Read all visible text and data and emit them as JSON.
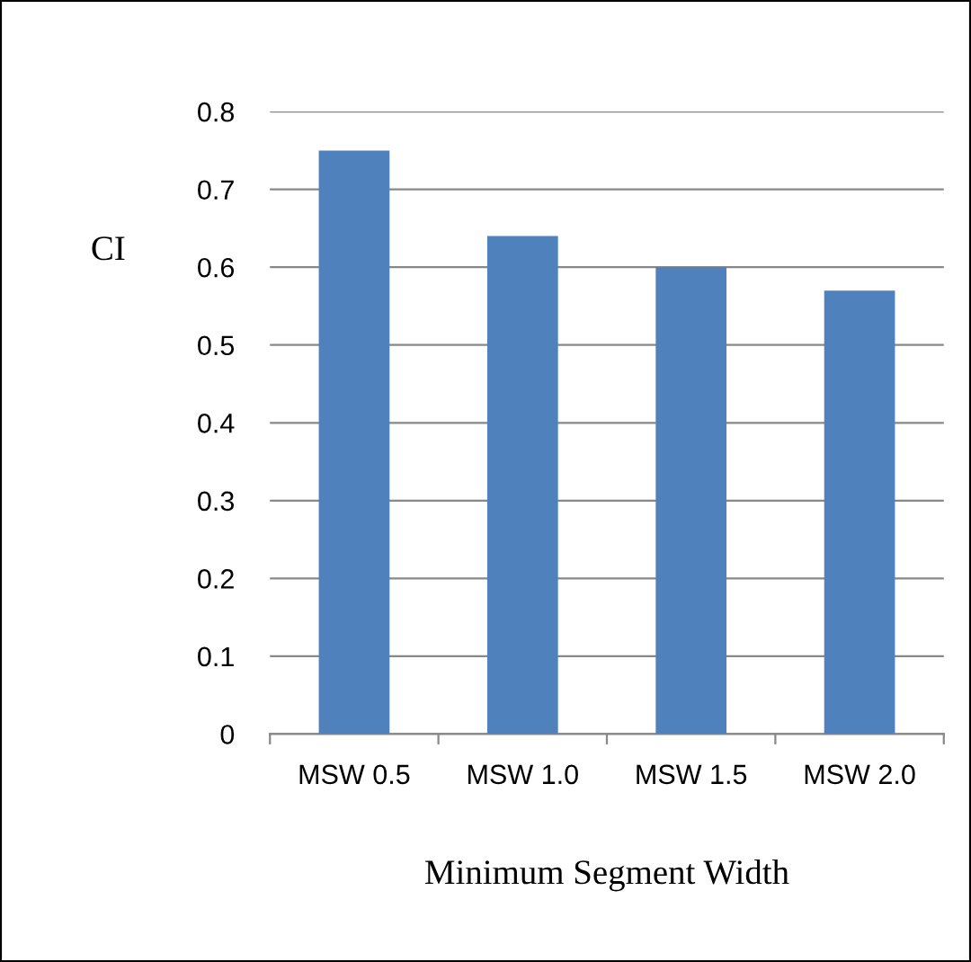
{
  "chart_data": {
    "type": "bar",
    "xlabel": "Minimum Segment Width",
    "ylabel": "CI",
    "categories": [
      "MSW 0.5",
      "MSW 1.0",
      "MSW 1.5",
      "MSW 2.0"
    ],
    "values": [
      0.75,
      0.64,
      0.6,
      0.57
    ],
    "color": "#4f81bd",
    "ylim": [
      0,
      0.8
    ],
    "yticks": [
      0,
      0.1,
      0.2,
      0.3,
      0.4,
      0.5,
      0.6,
      0.7,
      0.8
    ],
    "grid": "y"
  }
}
